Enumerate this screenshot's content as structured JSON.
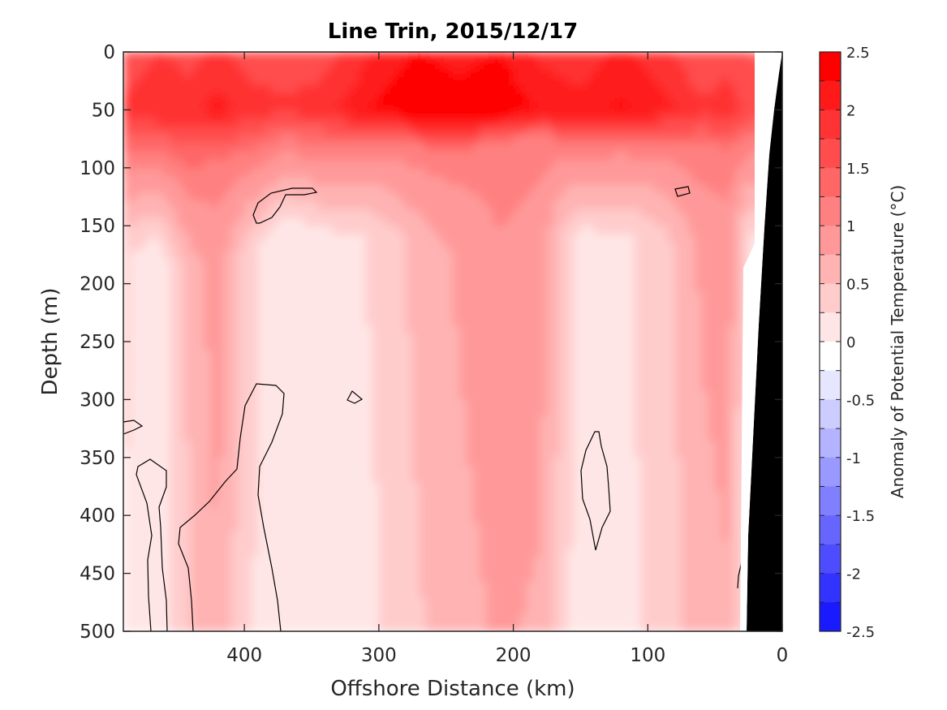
{
  "chart_data": {
    "type": "heatmap",
    "title": "Line Trin, 2015/12/17",
    "xlabel": "Offshore Distance (km)",
    "ylabel": "Depth (m)",
    "xlim": [
      490,
      0
    ],
    "ylim": [
      0,
      500
    ],
    "x_ticks": [
      "400",
      "300",
      "200",
      "100",
      "0"
    ],
    "x_tick_values": [
      400,
      300,
      200,
      100,
      0
    ],
    "y_ticks": [
      "0",
      "50",
      "100",
      "150",
      "200",
      "250",
      "300",
      "350",
      "400",
      "450",
      "500"
    ],
    "y_tick_values": [
      0,
      50,
      100,
      150,
      200,
      250,
      300,
      350,
      400,
      450,
      500
    ],
    "colorbar": {
      "label": "Anomaly of Potential Temperature (°C)",
      "ticks": [
        "2.5",
        "2",
        "1.5",
        "1",
        "0.5",
        "0",
        "-0.5",
        "-1",
        "-1.5",
        "-2",
        "-2.5"
      ],
      "tick_values": [
        2.5,
        2,
        1.5,
        1,
        0.5,
        0,
        -0.5,
        -1,
        -1.5,
        -2,
        -2.5
      ],
      "levels": [
        2.5,
        2.25,
        2.0,
        1.75,
        1.5,
        1.25,
        1.0,
        0.75,
        0.5,
        0.25,
        0,
        -0.25,
        -0.5,
        -0.75,
        -1.0,
        -1.25,
        -1.5,
        -1.75,
        -2.0,
        -2.25,
        -2.5
      ],
      "colors": [
        "#ff0000",
        "#ff1a1a",
        "#ff3333",
        "#ff4d4d",
        "#ff6666",
        "#ff8080",
        "#ff9999",
        "#ffb3b3",
        "#ffcccc",
        "#ffe6e6",
        "#ffffff",
        "#e6e6ff",
        "#ccccff",
        "#b3b3ff",
        "#9999ff",
        "#8080ff",
        "#6666ff",
        "#4d4dff",
        "#3333ff",
        "#1a1aff"
      ]
    },
    "bathymetry_color": "#000000",
    "profile_columns": [
      {
        "x": 490,
        "t0_50": 1.8,
        "mixed_layer_m": 95,
        "deep_anom": 0.3
      },
      {
        "x": 465,
        "t0_50": 2.0,
        "mixed_layer_m": 90,
        "deep_anom": 0.1
      },
      {
        "x": 440,
        "t0_50": 1.9,
        "mixed_layer_m": 110,
        "deep_anom": 0.6
      },
      {
        "x": 420,
        "t0_50": 2.1,
        "mixed_layer_m": 100,
        "deep_anom": 0.9
      },
      {
        "x": 400,
        "t0_50": 1.9,
        "mixed_layer_m": 95,
        "deep_anom": 0.4
      },
      {
        "x": 370,
        "t0_50": 1.8,
        "mixed_layer_m": 80,
        "deep_anom": 0.0
      },
      {
        "x": 340,
        "t0_50": 1.9,
        "mixed_layer_m": 85,
        "deep_anom": 0.1
      },
      {
        "x": 300,
        "t0_50": 2.3,
        "mixed_layer_m": 80,
        "deep_anom": 0.3
      },
      {
        "x": 270,
        "t0_50": 2.5,
        "mixed_layer_m": 85,
        "deep_anom": 0.6
      },
      {
        "x": 240,
        "t0_50": 2.4,
        "mixed_layer_m": 90,
        "deep_anom": 0.8
      },
      {
        "x": 210,
        "t0_50": 2.5,
        "mixed_layer_m": 80,
        "deep_anom": 1.0
      },
      {
        "x": 180,
        "t0_50": 2.2,
        "mixed_layer_m": 75,
        "deep_anom": 0.9
      },
      {
        "x": 150,
        "t0_50": 2.1,
        "mixed_layer_m": 85,
        "deep_anom": 0.1
      },
      {
        "x": 120,
        "t0_50": 2.3,
        "mixed_layer_m": 80,
        "deep_anom": 0.2
      },
      {
        "x": 90,
        "t0_50": 2.1,
        "mixed_layer_m": 80,
        "deep_anom": 0.4
      },
      {
        "x": 60,
        "t0_50": 1.8,
        "mixed_layer_m": 90,
        "deep_anom": 0.8
      },
      {
        "x": 40,
        "t0_50": 1.9,
        "mixed_layer_m": 90,
        "deep_anom": 0.9
      },
      {
        "x": 25,
        "t0_50": 1.7,
        "mixed_layer_m": 80,
        "deep_anom": 0.2
      }
    ]
  }
}
